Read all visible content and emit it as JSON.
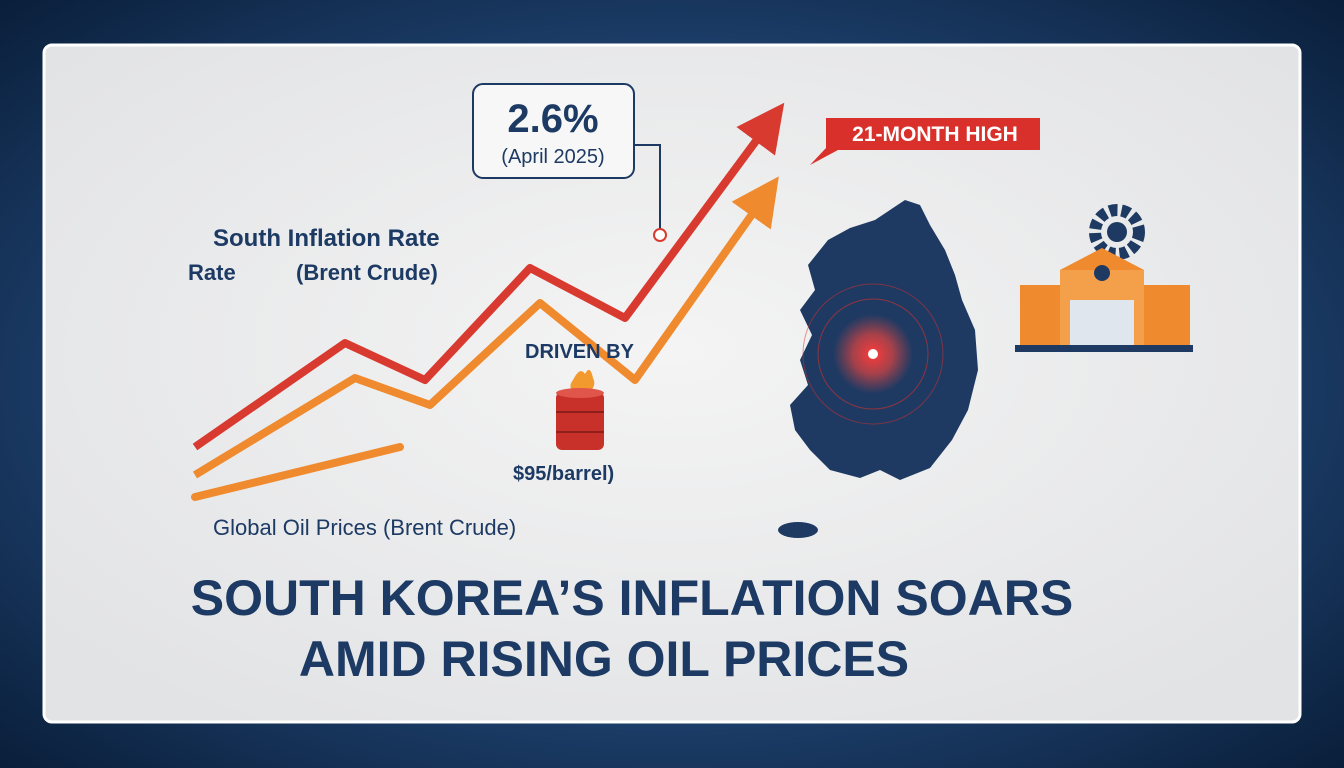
{
  "callout": {
    "value": "2.6%",
    "date": "(April 2025)"
  },
  "badge": "21-MONTH HIGH",
  "labels": {
    "inflation": "South Inflation Rate",
    "rate": "Rate",
    "brent": "(Brent Crude)",
    "driven": "DRIVEN BY",
    "price": "$95/barrel)",
    "oil": "Global Oil Prices (Brent Crude)"
  },
  "headline": [
    "SOUTH KOREA’S INFLATION SOARS",
    "AMID RISING OIL PRICES"
  ]
}
